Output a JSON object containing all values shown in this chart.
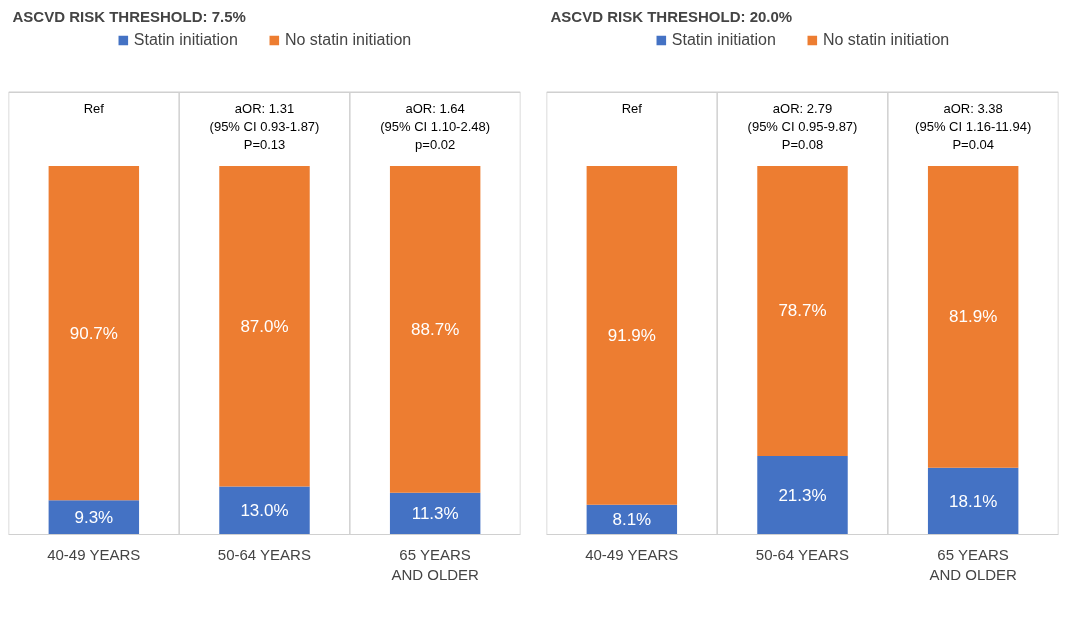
{
  "chart_data": [
    {
      "type": "bar",
      "stacked": true,
      "title": "ASCVD RISK THRESHOLD: 7.5%",
      "categories": [
        "40-49 YEARS",
        "50-64 YEARS",
        "65 YEARS AND OLDER"
      ],
      "series": [
        {
          "name": "Statin initiation",
          "color": "#4472c4",
          "values": [
            9.3,
            13.0,
            11.3
          ],
          "value_labels": [
            "9.3%",
            "13.0%",
            "11.3%"
          ]
        },
        {
          "name": "No statin initiation",
          "color": "#ed7d31",
          "values": [
            90.7,
            87.0,
            88.7
          ],
          "value_labels": [
            "90.7%",
            "87.0%",
            "88.7%"
          ]
        }
      ],
      "annotations": [
        "Ref",
        "aOR: 1.31\n(95% CI 0.93-1.87)\nP=0.13",
        "aOR: 1.64\n(95% CI 1.10-2.48)\np=0.02"
      ],
      "legend": "top",
      "grid": "x",
      "tick_labels": "x"
    },
    {
      "type": "bar",
      "stacked": true,
      "title": "ASCVD RISK THRESHOLD: 20.0%",
      "categories": [
        "40-49 YEARS",
        "50-64 YEARS",
        "65 YEARS AND OLDER"
      ],
      "series": [
        {
          "name": "Statin initiation",
          "color": "#4472c4",
          "values": [
            8.1,
            21.3,
            18.1
          ],
          "value_labels": [
            "8.1%",
            "21.3%",
            "18.1%"
          ]
        },
        {
          "name": "No statin initiation",
          "color": "#ed7d31",
          "values": [
            91.9,
            78.7,
            81.9
          ],
          "value_labels": [
            "91.9%",
            "78.7%",
            "81.9%"
          ]
        }
      ],
      "annotations": [
        "Ref",
        "aOR: 2.79\n(95% CI 0.95-9.87)\nP=0.08",
        "aOR: 3.38\n(95% CI 1.16-11.94)\nP=0.04"
      ],
      "legend": "top",
      "grid": "x",
      "tick_labels": "x"
    }
  ]
}
